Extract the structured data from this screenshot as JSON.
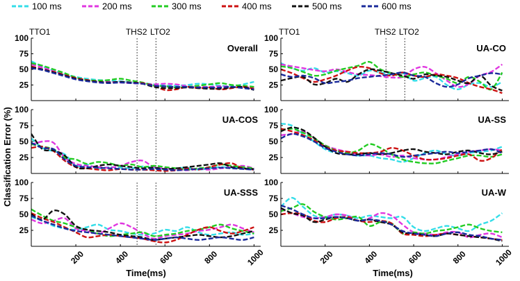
{
  "chart_data": {
    "type": "line",
    "layout": "3x2 grid of small-multiple line plots",
    "xlabel": "Time(ms)",
    "ylabel": "Classification Error (%)",
    "xlim": [
      0,
      1030
    ],
    "ylim": [
      0,
      100
    ],
    "x_ticks": [
      200,
      400,
      600,
      800,
      1000
    ],
    "y_ticks": [
      25,
      50,
      75,
      100
    ],
    "legend": {
      "placement": "top",
      "entries": [
        {
          "name": "100 ms",
          "color": "#33dde8"
        },
        {
          "name": "200 ms",
          "color": "#e036e0"
        },
        {
          "name": "300 ms",
          "color": "#22cc22"
        },
        {
          "name": "400 ms",
          "color": "#cc1111"
        },
        {
          "name": "500 ms",
          "color": "#111111"
        },
        {
          "name": "600 ms",
          "color": "#1a2a9a"
        }
      ]
    },
    "event_labels": [
      "TTO1",
      "THS2",
      "LTO2"
    ],
    "event_times": {
      "TTO1": 0,
      "THS2": 475,
      "LTO2": 560
    },
    "x": [
      0,
      50,
      100,
      150,
      200,
      250,
      300,
      350,
      400,
      450,
      500,
      550,
      600,
      650,
      700,
      750,
      800,
      850,
      900,
      950,
      1000
    ],
    "panels": [
      {
        "title": "Overall",
        "show_events": true,
        "series": [
          {
            "name": "100 ms",
            "values": [
              63,
              55,
              48,
              42,
              38,
              35,
              33,
              32,
              31,
              29,
              28,
              26,
              24,
              24,
              25,
              27,
              26,
              24,
              23,
              26,
              30
            ]
          },
          {
            "name": "200 ms",
            "values": [
              58,
              53,
              47,
              41,
              36,
              33,
              31,
              30,
              29,
              28,
              27,
              26,
              27,
              26,
              23,
              22,
              22,
              23,
              22,
              21,
              22
            ]
          },
          {
            "name": "300 ms",
            "values": [
              60,
              56,
              50,
              44,
              37,
              33,
              32,
              33,
              35,
              32,
              29,
              24,
              23,
              21,
              22,
              24,
              26,
              28,
              25,
              24,
              22
            ]
          },
          {
            "name": "400 ms",
            "values": [
              55,
              50,
              46,
              41,
              36,
              33,
              30,
              29,
              30,
              29,
              28,
              24,
              17,
              18,
              22,
              20,
              21,
              18,
              20,
              22,
              19
            ]
          },
          {
            "name": "500 ms",
            "values": [
              53,
              50,
              45,
              40,
              35,
              32,
              30,
              29,
              30,
              29,
              27,
              22,
              20,
              20,
              21,
              20,
              19,
              19,
              21,
              22,
              17
            ]
          },
          {
            "name": "600 ms",
            "values": [
              52,
              49,
              44,
              39,
              34,
              31,
              29,
              28,
              29,
              28,
              27,
              24,
              23,
              22,
              22,
              21,
              21,
              21,
              22,
              20,
              18
            ]
          }
        ]
      },
      {
        "title": "UA-CO",
        "show_events": true,
        "series": [
          {
            "name": "100 ms",
            "values": [
              60,
              52,
              48,
              52,
              45,
              47,
              44,
              40,
              48,
              45,
              42,
              44,
              32,
              36,
              38,
              25,
              18,
              26,
              28,
              22,
              30
            ]
          },
          {
            "name": "200 ms",
            "values": [
              58,
              55,
              52,
              49,
              47,
              50,
              46,
              42,
              41,
              39,
              37,
              38,
              50,
              54,
              44,
              32,
              22,
              27,
              40,
              46,
              58
            ]
          },
          {
            "name": "300 ms",
            "values": [
              55,
              52,
              46,
              40,
              42,
              48,
              52,
              56,
              62,
              50,
              44,
              38,
              42,
              45,
              40,
              35,
              28,
              38,
              30,
              18,
              45
            ]
          },
          {
            "name": "400 ms",
            "values": [
              50,
              44,
              36,
              30,
              34,
              40,
              48,
              54,
              52,
              44,
              40,
              45,
              40,
              38,
              42,
              40,
              36,
              28,
              22,
              18,
              12
            ]
          },
          {
            "name": "500 ms",
            "values": [
              32,
              36,
              38,
              26,
              28,
              35,
              30,
              42,
              50,
              48,
              44,
              40,
              35,
              42,
              40,
              38,
              32,
              28,
              40,
              24,
              16
            ]
          },
          {
            "name": "600 ms",
            "values": [
              42,
              38,
              40,
              36,
              28,
              30,
              32,
              36,
              38,
              40,
              42,
              45,
              40,
              38,
              28,
              22,
              26,
              36,
              40,
              44,
              42
            ]
          }
        ]
      },
      {
        "title": "UA-COS",
        "show_events": true,
        "series": [
          {
            "name": "100 ms",
            "values": [
              55,
              40,
              35,
              30,
              12,
              14,
              8,
              10,
              9,
              8,
              11,
              9,
              7,
              8,
              9,
              6,
              8,
              10,
              9,
              8,
              6
            ]
          },
          {
            "name": "200 ms",
            "values": [
              45,
              50,
              48,
              25,
              15,
              12,
              10,
              9,
              12,
              18,
              20,
              10,
              8,
              6,
              5,
              7,
              6,
              8,
              10,
              12,
              8
            ]
          },
          {
            "name": "300 ms",
            "values": [
              46,
              42,
              38,
              25,
              22,
              15,
              18,
              16,
              12,
              14,
              10,
              12,
              10,
              8,
              6,
              8,
              10,
              14,
              12,
              10,
              8
            ]
          },
          {
            "name": "400 ms",
            "values": [
              40,
              42,
              35,
              20,
              10,
              8,
              6,
              5,
              7,
              6,
              6,
              5,
              4,
              5,
              8,
              6,
              10,
              14,
              16,
              8,
              6
            ]
          },
          {
            "name": "500 ms",
            "values": [
              62,
              38,
              36,
              28,
              10,
              8,
              12,
              14,
              12,
              10,
              8,
              9,
              7,
              8,
              10,
              12,
              14,
              16,
              10,
              8,
              7
            ]
          },
          {
            "name": "600 ms",
            "values": [
              48,
              40,
              38,
              22,
              12,
              10,
              9,
              8,
              7,
              6,
              6,
              7,
              6,
              5,
              6,
              7,
              8,
              9,
              8,
              7,
              6
            ]
          }
        ]
      },
      {
        "title": "UA-SS",
        "show_events": false,
        "series": [
          {
            "name": "100 ms",
            "values": [
              78,
              75,
              62,
              50,
              38,
              32,
              30,
              28,
              28,
              24,
              22,
              18,
              24,
              32,
              36,
              30,
              28,
              32,
              34,
              36,
              42
            ]
          },
          {
            "name": "200 ms",
            "values": [
              60,
              62,
              66,
              55,
              44,
              38,
              34,
              30,
              28,
              30,
              26,
              28,
              24,
              22,
              22,
              26,
              30,
              34,
              36,
              38,
              36
            ]
          },
          {
            "name": "300 ms",
            "values": [
              68,
              70,
              64,
              55,
              44,
              36,
              32,
              36,
              46,
              40,
              30,
              22,
              18,
              16,
              16,
              20,
              24,
              28,
              28,
              26,
              30
            ]
          },
          {
            "name": "400 ms",
            "values": [
              70,
              66,
              60,
              52,
              42,
              36,
              34,
              32,
              32,
              34,
              40,
              36,
              28,
              22,
              22,
              24,
              28,
              30,
              20,
              24,
              38
            ]
          },
          {
            "name": "500 ms",
            "values": [
              66,
              72,
              68,
              56,
              42,
              32,
              30,
              30,
              32,
              30,
              32,
              36,
              38,
              34,
              32,
              30,
              34,
              36,
              32,
              30,
              34
            ]
          },
          {
            "name": "600 ms",
            "values": [
              55,
              62,
              58,
              50,
              40,
              34,
              30,
              28,
              30,
              32,
              30,
              26,
              28,
              30,
              32,
              34,
              32,
              34,
              36,
              38,
              32
            ]
          }
        ]
      },
      {
        "title": "UA-SSS",
        "show_events": true,
        "series": [
          {
            "name": "100 ms",
            "values": [
              46,
              40,
              32,
              28,
              26,
              30,
              34,
              26,
              24,
              20,
              18,
              20,
              26,
              24,
              30,
              22,
              18,
              20,
              22,
              18,
              20
            ]
          },
          {
            "name": "200 ms",
            "values": [
              42,
              36,
              40,
              44,
              28,
              24,
              20,
              28,
              36,
              30,
              20,
              12,
              16,
              18,
              20,
              24,
              26,
              30,
              34,
              28,
              22
            ]
          },
          {
            "name": "300 ms",
            "values": [
              58,
              48,
              40,
              36,
              30,
              26,
              20,
              16,
              18,
              20,
              22,
              16,
              18,
              20,
              24,
              26,
              30,
              34,
              28,
              24,
              20
            ]
          },
          {
            "name": "400 ms",
            "values": [
              52,
              44,
              38,
              30,
              22,
              14,
              16,
              18,
              16,
              14,
              12,
              8,
              6,
              10,
              18,
              26,
              30,
              24,
              20,
              24,
              30
            ]
          },
          {
            "name": "500 ms",
            "values": [
              50,
              42,
              56,
              50,
              32,
              26,
              24,
              22,
              18,
              16,
              14,
              10,
              12,
              14,
              16,
              18,
              16,
              14,
              16,
              20,
              24
            ]
          },
          {
            "name": "600 ms",
            "values": [
              48,
              40,
              34,
              28,
              24,
              22,
              20,
              18,
              16,
              14,
              12,
              10,
              12,
              14,
              12,
              10,
              12,
              14,
              12,
              10,
              14
            ]
          }
        ]
      },
      {
        "title": "UA-W",
        "show_events": false,
        "series": [
          {
            "name": "100 ms",
            "values": [
              62,
              76,
              62,
              48,
              46,
              50,
              48,
              44,
              48,
              46,
              44,
              46,
              30,
              24,
              28,
              32,
              28,
              24,
              34,
              40,
              52
            ]
          },
          {
            "name": "200 ms",
            "values": [
              58,
              52,
              46,
              44,
              46,
              50,
              48,
              40,
              44,
              52,
              48,
              34,
              22,
              20,
              18,
              22,
              22,
              14,
              18,
              20,
              14
            ]
          },
          {
            "name": "300 ms",
            "values": [
              55,
              60,
              66,
              54,
              46,
              42,
              44,
              46,
              32,
              38,
              36,
              20,
              22,
              20,
              24,
              26,
              30,
              34,
              28,
              24,
              22
            ]
          },
          {
            "name": "400 ms",
            "values": [
              50,
              52,
              50,
              40,
              38,
              44,
              46,
              40,
              38,
              40,
              36,
              20,
              18,
              16,
              18,
              20,
              18,
              16,
              14,
              12,
              10
            ]
          },
          {
            "name": "500 ms",
            "values": [
              60,
              52,
              48,
              38,
              42,
              46,
              44,
              40,
              42,
              38,
              34,
              22,
              20,
              18,
              16,
              20,
              18,
              16,
              14,
              12,
              8
            ]
          },
          {
            "name": "600 ms",
            "values": [
              64,
              58,
              50,
              44,
              44,
              46,
              44,
              40,
              42,
              40,
              34,
              24,
              20,
              18,
              16,
              20,
              22,
              18,
              16,
              12,
              10
            ]
          }
        ]
      }
    ]
  }
}
